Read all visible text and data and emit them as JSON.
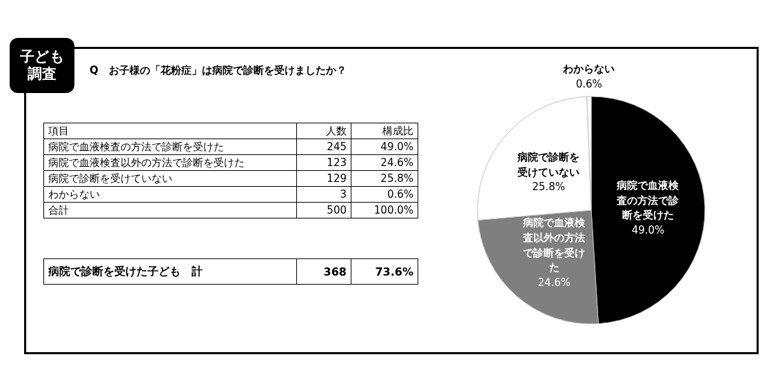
{
  "chart_data": {
    "type": "pie",
    "title": "Q　お子様の「花粉症」は病院で診断を受けましたか？",
    "subtitle": "子ども調査",
    "categories": [
      "病院で血液検査の方法で診断を受けた",
      "病院で血液検査以外の方法で診断を受けた",
      "病院で診断を受けていない",
      "わからない"
    ],
    "values": [
      49.0,
      24.6,
      25.8,
      0.6
    ],
    "colors": [
      "#000000",
      "#7f7f7f",
      "#ffffff",
      "#ffffff"
    ],
    "value_labels": [
      "49.0%",
      "24.6%",
      "25.8%",
      "0.6%"
    ],
    "annotations": [
      "項目",
      "人数",
      "構成比",
      "245",
      "123",
      "129",
      "3",
      "合計",
      "500",
      "100.0%",
      "病院で診断を受けた子ども　計",
      "368",
      "73.6%"
    ]
  }
}
